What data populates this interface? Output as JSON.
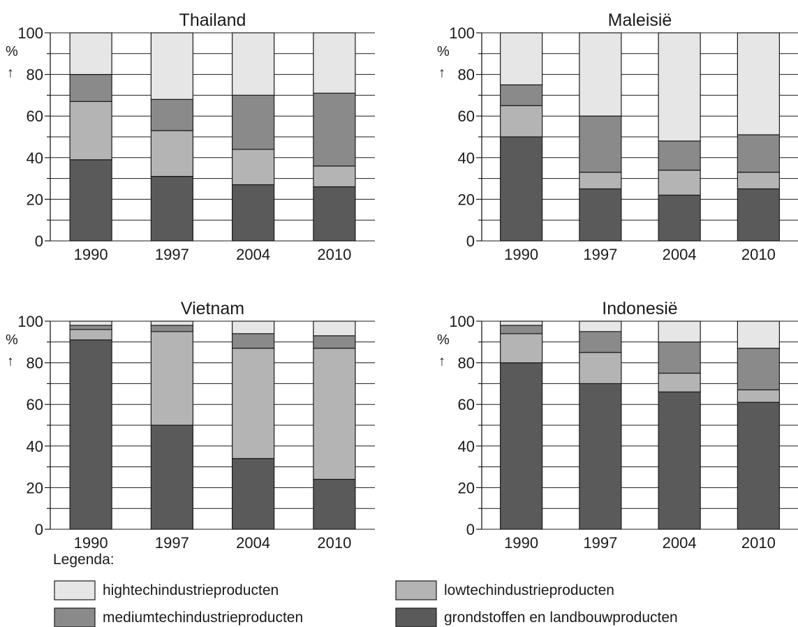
{
  "chart_data": {
    "type": "bar",
    "stacked": true,
    "categories": [
      "1990",
      "1997",
      "2004",
      "2010"
    ],
    "ylim": [
      0,
      100
    ],
    "yticks": [
      "0",
      "20",
      "40",
      "60",
      "80",
      "100"
    ],
    "y_unit": "%",
    "y_unit_arrow": "↑",
    "grid": true,
    "legend_title": "Legenda:",
    "series_styles": [
      {
        "name": "grondstoffen en landbouwproducten",
        "color": "#5a5a5a"
      },
      {
        "name": "lowtechindustrieproducten",
        "color": "#b4b4b4"
      },
      {
        "name": "mediumtechindustrieproducten",
        "color": "#8a8a8a"
      },
      {
        "name": "hightechindustrieproducten",
        "color": "#e6e6e6"
      }
    ],
    "legend_order": [
      "hightechindustrieproducten",
      "lowtechindustrieproducten",
      "mediumtechindustrieproducten",
      "grondstoffen en landbouwproducten"
    ],
    "panels": [
      {
        "title": "Thailand",
        "series": [
          {
            "name": "grondstoffen en landbouwproducten",
            "values": [
              39,
              31,
              27,
              26
            ]
          },
          {
            "name": "lowtechindustrieproducten",
            "values": [
              28,
              22,
              17,
              10
            ]
          },
          {
            "name": "mediumtechindustrieproducten",
            "values": [
              13,
              15,
              26,
              35
            ]
          },
          {
            "name": "hightechindustrieproducten",
            "values": [
              20,
              32,
              30,
              29
            ]
          }
        ]
      },
      {
        "title": "Maleisië",
        "series": [
          {
            "name": "grondstoffen en landbouwproducten",
            "values": [
              50,
              25,
              22,
              25
            ]
          },
          {
            "name": "lowtechindustrieproducten",
            "values": [
              15,
              8,
              12,
              8
            ]
          },
          {
            "name": "mediumtechindustrieproducten",
            "values": [
              10,
              27,
              14,
              18
            ]
          },
          {
            "name": "hightechindustrieproducten",
            "values": [
              25,
              40,
              52,
              49
            ]
          }
        ]
      },
      {
        "title": "Vietnam",
        "series": [
          {
            "name": "grondstoffen en landbouwproducten",
            "values": [
              91,
              50,
              34,
              24
            ]
          },
          {
            "name": "lowtechindustrieproducten",
            "values": [
              5,
              45,
              53,
              63
            ]
          },
          {
            "name": "mediumtechindustrieproducten",
            "values": [
              2,
              3,
              7,
              6
            ]
          },
          {
            "name": "hightechindustrieproducten",
            "values": [
              2,
              2,
              6,
              7
            ]
          }
        ]
      },
      {
        "title": "Indonesië",
        "series": [
          {
            "name": "grondstoffen en landbouwproducten",
            "values": [
              80,
              70,
              66,
              61
            ]
          },
          {
            "name": "lowtechindustrieproducten",
            "values": [
              14,
              15,
              9,
              6
            ]
          },
          {
            "name": "mediumtechindustrieproducten",
            "values": [
              4,
              10,
              15,
              20
            ]
          },
          {
            "name": "hightechindustrieproducten",
            "values": [
              2,
              5,
              10,
              13
            ]
          }
        ]
      }
    ]
  }
}
